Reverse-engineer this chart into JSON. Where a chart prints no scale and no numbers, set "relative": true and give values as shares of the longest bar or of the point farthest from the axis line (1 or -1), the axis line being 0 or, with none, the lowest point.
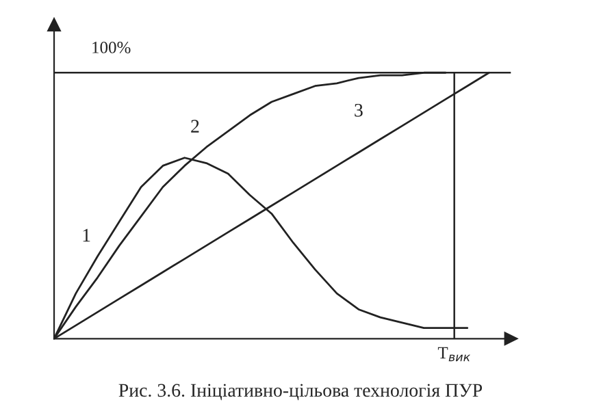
{
  "chart_data": {
    "type": "line",
    "relative": true,
    "legend": false,
    "marker": "none",
    "line_style": "solid",
    "categories": [
      null,
      null,
      null,
      null,
      null,
      null,
      null,
      null,
      null,
      null,
      null,
      null,
      null,
      null,
      null,
      null,
      null,
      null,
      null,
      null,
      null
    ],
    "series": [
      {
        "name": "1",
        "color": "#222222",
        "values": [
          0,
          0.17,
          0.31,
          0.44,
          0.57,
          0.65,
          0.68,
          0.66,
          0.62,
          0.54,
          0.47,
          0.36,
          0.26,
          0.17,
          0.11,
          0.08,
          0.06,
          0.04,
          0.04,
          0.04,
          null
        ]
      },
      {
        "name": "2",
        "color": "#222222",
        "values": [
          0,
          0.12,
          0.23,
          0.35,
          0.46,
          0.57,
          0.65,
          0.72,
          0.78,
          0.84,
          0.89,
          0.92,
          0.95,
          0.96,
          0.98,
          0.99,
          0.99,
          1.0,
          1.0,
          null,
          null
        ]
      },
      {
        "name": "3",
        "color": "#222222",
        "values": [
          0,
          0.05,
          0.1,
          0.15,
          0.2,
          0.25,
          0.3,
          0.35,
          0.4,
          0.45,
          0.5,
          0.55,
          0.6,
          0.65,
          0.7,
          0.75,
          0.8,
          0.85,
          0.9,
          0.95,
          1.0
        ]
      }
    ],
    "ref_lines": [
      {
        "axis": "y",
        "value": 1,
        "label": "100%",
        "color": "#222222"
      }
    ],
    "annotations": [
      "Т$_{вик}$",
      "Рис. 3.6. Ініціативно-цільова технологія ПУР"
    ]
  }
}
